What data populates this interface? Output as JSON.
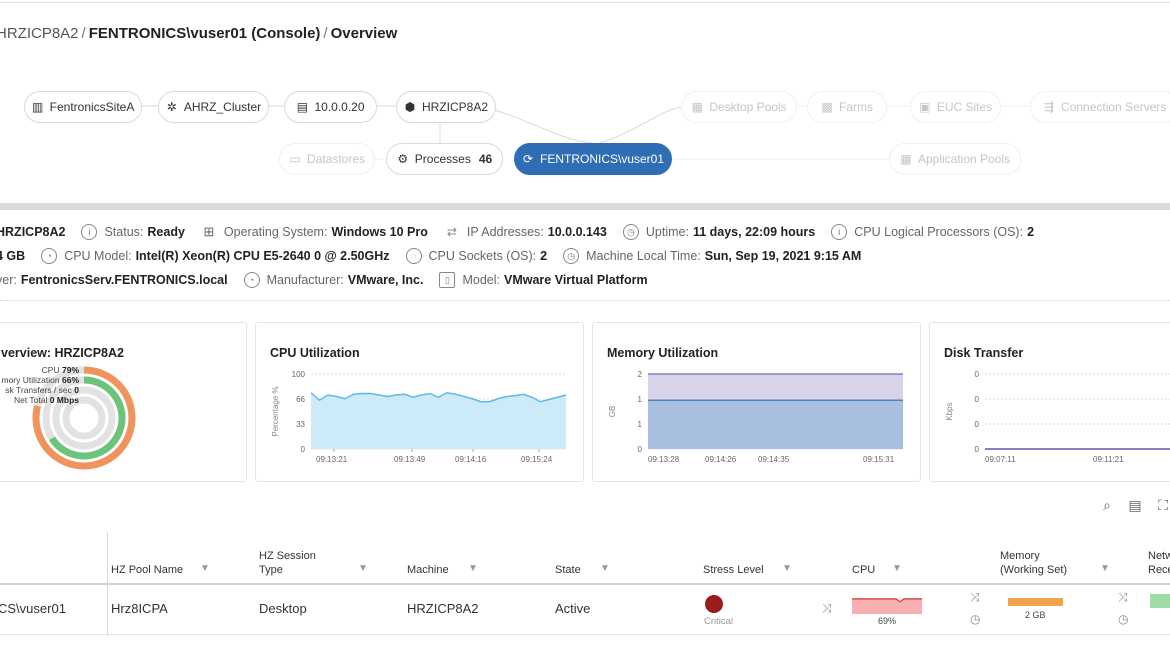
{
  "breadcrumb": {
    "parent": "HRZICP8A2",
    "current": "FENTRONICS\\vuser01 (Console)",
    "page": "Overview"
  },
  "topology": {
    "site": "FentronicsSiteA",
    "cluster": "AHRZ_Cluster",
    "host": "10.0.0.20",
    "vm": "HRZICP8A2",
    "desktop_pools": "Desktop Pools",
    "farms": "Farms",
    "euc_sites": "EUC Sites",
    "connection_servers": "Connection Servers",
    "datastores": "Datastores",
    "processes_label": "Processes",
    "processes_count": "46",
    "active_session": "FENTRONICS\\vuser01",
    "application_pools": "Application Pools"
  },
  "info": {
    "name": "HRZICP8A2",
    "status_label": "Status:",
    "status": "Ready",
    "os_label": "Operating System:",
    "os": "Windows 10 Pro",
    "ip_label": "IP Addresses:",
    "ip": "10.0.0.143",
    "uptime_label": "Uptime:",
    "uptime": "11 days, 22:09 hours",
    "cpu_logical_label": "CPU Logical Processors (OS):",
    "cpu_logical": "2",
    "memory_total": "4 GB",
    "cpu_model_label": "CPU Model:",
    "cpu_model": "Intel(R) Xeon(R) CPU E5-2640 0 @ 2.50GHz",
    "cpu_sockets_label": "CPU Sockets (OS):",
    "cpu_sockets": "2",
    "local_time_label": "Machine Local Time:",
    "local_time": "Sun, Sep 19, 2021 9:15 AM",
    "server_label": "ver:",
    "server": "FentronicsServ.FENTRONICS.local",
    "manufacturer_label": "Manufacturer:",
    "manufacturer": "VMware, Inc.",
    "model_label": "Model:",
    "model": "VMware Virtual Platform"
  },
  "overview_card": {
    "title": "verview: HRZICP8A2",
    "rows": [
      {
        "label": "CPU",
        "value": "79%"
      },
      {
        "label": "mory Utilization",
        "value": "66%"
      },
      {
        "label": "sk Transfers / sec",
        "value": "0"
      },
      {
        "label": "Net Total",
        "value": "0 Mbps"
      }
    ]
  },
  "chart_data": [
    {
      "type": "radial",
      "title": "verview: HRZICP8A2",
      "series": [
        {
          "name": "CPU",
          "value": 79,
          "color": "#f0935d"
        },
        {
          "name": "Memory Utilization",
          "value": 66,
          "color": "#6cc47a"
        },
        {
          "name": "Disk Transfers / sec",
          "value": 0,
          "color": "#cccccc"
        },
        {
          "name": "Net Total",
          "value": 0,
          "color": "#cccccc"
        }
      ],
      "max": 100
    },
    {
      "type": "area",
      "title": "CPU Utilization",
      "ylabel": "Percentage %",
      "ylim": [
        0,
        100
      ],
      "yticks": [
        "100",
        "66",
        "33",
        "0"
      ],
      "xticks": [
        "09:13:21",
        "09:13:49",
        "09:14:16",
        "09:15:24"
      ],
      "values": [
        75,
        65,
        72,
        70,
        67,
        73,
        74,
        74,
        72,
        70,
        72,
        73,
        69,
        72,
        74,
        69,
        75,
        73,
        70,
        67,
        63,
        63,
        67,
        70,
        71,
        73,
        69,
        63,
        66,
        69,
        72
      ],
      "color": "#5fb9e8"
    },
    {
      "type": "area",
      "title": "Memory Utilization",
      "ylabel": "GB",
      "ylim": [
        0,
        2
      ],
      "yticks": [
        "2",
        "1",
        "1",
        "0"
      ],
      "xticks": [
        "09:13:28",
        "09:14:26",
        "09:14:35",
        "09:15:31"
      ],
      "series": [
        {
          "values": [
            2.0,
            2.0
          ],
          "color": "#8c7fbe"
        },
        {
          "values": [
            1.3,
            1.3
          ],
          "color": "#4a86c5"
        }
      ]
    },
    {
      "type": "line",
      "title": "Disk Transfer",
      "ylabel": "Kbps",
      "yticks": [
        "0",
        "0",
        "0",
        "0"
      ],
      "xticks": [
        "09:07:11",
        "09:11:21"
      ],
      "values": [
        0,
        0
      ],
      "color": "#8c7fbe"
    }
  ],
  "table": {
    "headers": {
      "pool": "HZ Pool Name",
      "session_type": "HZ Session Type",
      "machine": "Machine",
      "state": "State",
      "stress": "Stress Level",
      "cpu": "CPU",
      "memory": "Memory (Working Set)",
      "network": "Netw Rece"
    },
    "row": {
      "user": "CS\\vuser01",
      "pool": "Hrz8ICPA",
      "session_type": "Desktop",
      "machine": "HRZICP8A2",
      "state": "Active",
      "stress": "Critical",
      "cpu": "69%",
      "cpu_value": 69,
      "memory": "2 GB"
    }
  }
}
